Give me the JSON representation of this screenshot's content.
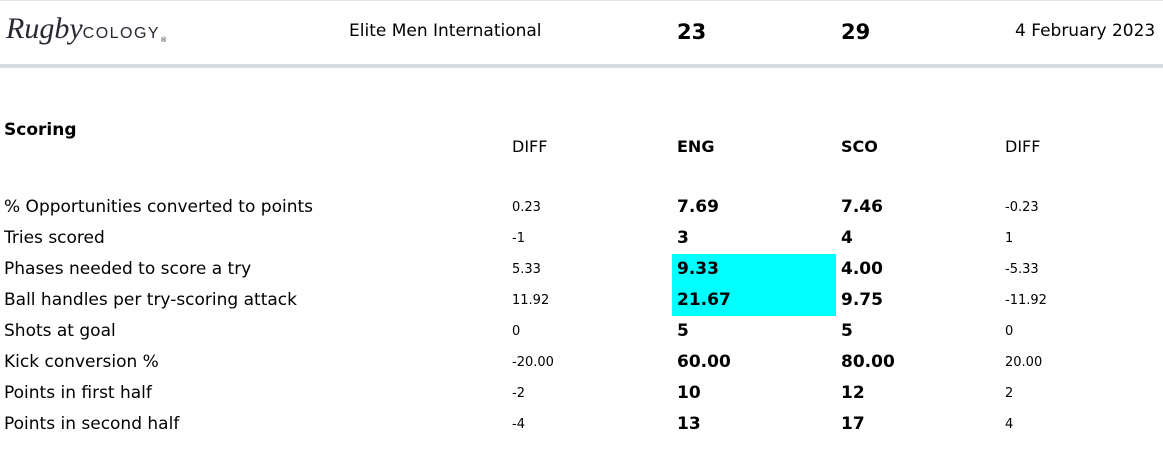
{
  "header": {
    "logo": {
      "script": "Rugby",
      "caps": "COLOGY",
      "mark": "®"
    },
    "competition": "Elite Men International",
    "home_score": "23",
    "away_score": "29",
    "date": "4 February 2023"
  },
  "section": {
    "title": "Scoring",
    "columns": [
      "DIFF",
      "ENG",
      "SCO",
      "DIFF"
    ]
  },
  "table": {
    "rows": [
      [
        "% Opportunities converted to points",
        "0.23",
        "7.69",
        "7.46",
        "-0.23"
      ],
      [
        "Tries scored",
        "-1",
        "3",
        "4",
        "1"
      ],
      [
        "Phases needed to score a try",
        "5.33",
        "9.33",
        "4.00",
        "-5.33"
      ],
      [
        "Ball handles per try-scoring attack",
        "11.92",
        "21.67",
        "9.75",
        "-11.92"
      ],
      [
        "Shots at goal",
        "0",
        "5",
        "5",
        "0"
      ],
      [
        "Kick conversion %",
        "-20.00",
        "60.00",
        "80.00",
        "20.00"
      ],
      [
        "Points in first half",
        "-2",
        "10",
        "12",
        "2"
      ],
      [
        "Points in second half",
        "-4",
        "13",
        "17",
        "4"
      ]
    ]
  }
}
